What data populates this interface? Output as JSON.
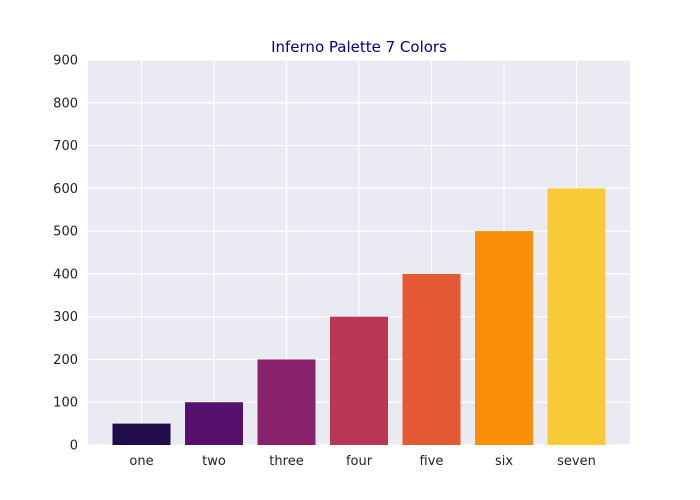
{
  "chart_data": {
    "type": "bar",
    "title": "Inferno Palette 7 Colors",
    "xlabel": "",
    "ylabel": "",
    "categories": [
      "one",
      "two",
      "three",
      "four",
      "five",
      "six",
      "seven"
    ],
    "values": [
      50,
      100,
      200,
      300,
      400,
      500,
      600
    ],
    "colors": [
      "#1f0c48",
      "#550f6d",
      "#88226a",
      "#ba3655",
      "#e35933",
      "#f98e09",
      "#f7cb35"
    ],
    "ylim": [
      0,
      900
    ],
    "yticks": [
      0,
      100,
      200,
      300,
      400,
      500,
      600,
      700,
      800,
      900
    ],
    "grid": true,
    "legend": "none"
  },
  "colors": {
    "plot_background": "#eaeaf2",
    "grid": "#ffffff",
    "title": "#00008b"
  }
}
